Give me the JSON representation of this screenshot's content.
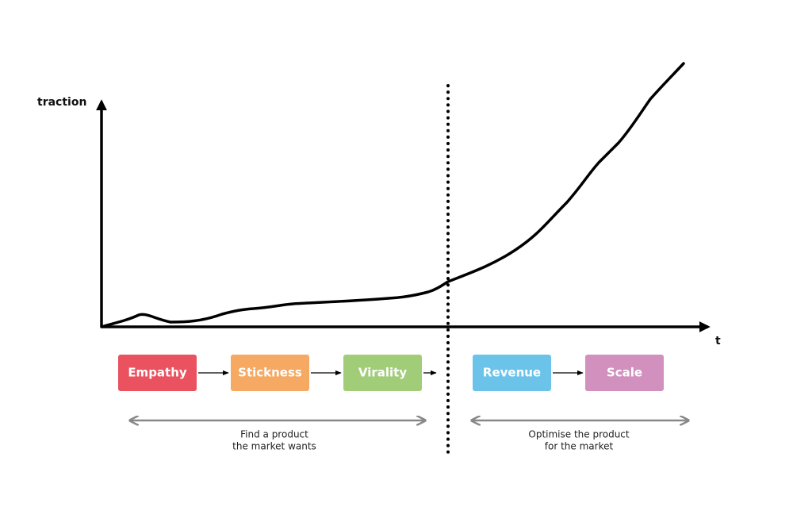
{
  "axes": {
    "y_label": "traction",
    "x_label": "t"
  },
  "stages": [
    {
      "label": "Empathy",
      "color": "#e9525e"
    },
    {
      "label": "Stickness",
      "color": "#f5a963"
    },
    {
      "label": "Virality",
      "color": "#a1cd78"
    },
    {
      "label": "Revenue",
      "color": "#6cc3ea"
    },
    {
      "label": "Scale",
      "color": "#d190be"
    }
  ],
  "phases": [
    {
      "lines": [
        "Find a product",
        "the market wants"
      ]
    },
    {
      "lines": [
        "Optimise the product",
        "for the market"
      ]
    }
  ]
}
